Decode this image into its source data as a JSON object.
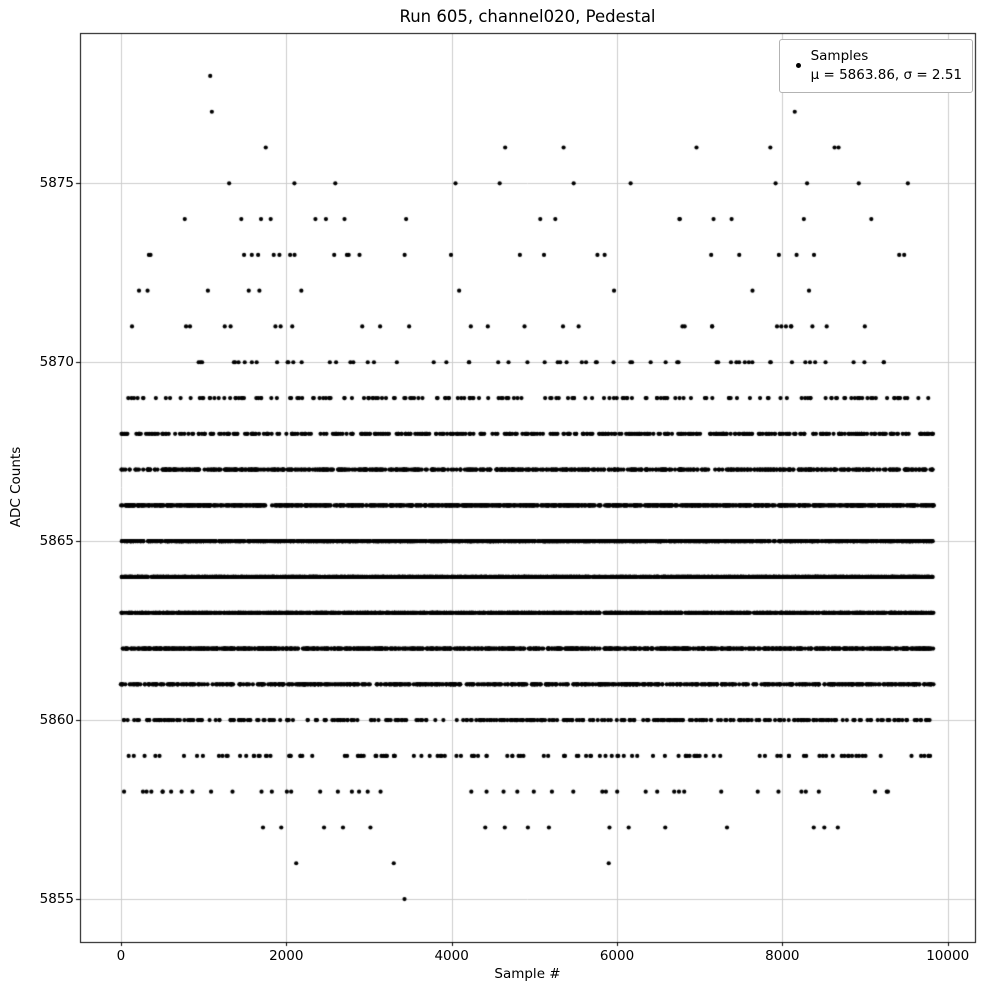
{
  "chart_data": {
    "type": "scatter",
    "title": "Run 605, channel020, Pedestal",
    "xlabel": "Sample #",
    "ylabel": "ADC Counts",
    "xlim": [
      -495,
      10330
    ],
    "ylim": [
      5853.8,
      5879.2
    ],
    "xticks": [
      0,
      2000,
      4000,
      6000,
      8000,
      10000
    ],
    "yticks": [
      5855,
      5860,
      5865,
      5870,
      5875
    ],
    "grid": true,
    "legend": {
      "title": "Samples",
      "stats": "μ = 5863.86, σ = 2.51",
      "position": "upper right"
    },
    "stats": {
      "mu": 5863.86,
      "sigma": 2.51
    },
    "marker": {
      "color": "#000000",
      "radius_px": 2.1
    },
    "x_sample_range": [
      0,
      9830
    ],
    "value_counts": {
      "5857": 16,
      "5858": 45,
      "5859": 130,
      "5860": 340,
      "5861": 720,
      "5862": 1150,
      "5863": 1500,
      "5864": 1600,
      "5865": 1430,
      "5866": 1120,
      "5867": 760,
      "5868": 430,
      "5869": 170,
      "5870": 62,
      "5871": 28,
      "5872": 10,
      "5873": 26,
      "5874": 16,
      "5875": 11,
      "5876": 7
    },
    "notable_points": [
      [
        3430,
        5855
      ],
      [
        2120,
        5856
      ],
      [
        3300,
        5856
      ],
      [
        5900,
        5856
      ],
      [
        1080,
        5878
      ],
      [
        1100,
        5877
      ],
      [
        8150,
        5877
      ]
    ]
  }
}
